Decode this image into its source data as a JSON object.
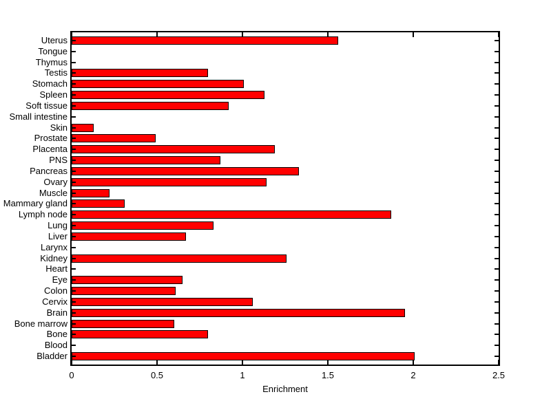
{
  "figure": {
    "background_color": "#ffffff",
    "title": ""
  },
  "chart_data": {
    "type": "bar",
    "orientation": "horizontal",
    "title": "",
    "xlabel": "Enrichment",
    "ylabel": "",
    "xlim": [
      0,
      2.5
    ],
    "xticks": [
      0,
      0.5,
      1,
      1.5,
      2,
      2.5
    ],
    "xtick_labels": [
      "0",
      "0.5",
      "1",
      "1.5",
      "2",
      "2.5"
    ],
    "grid": false,
    "legend": null,
    "bar_color": "#ff0000",
    "bar_edge_color": "#000000",
    "axis_color": "#000000",
    "categories": [
      "Uterus",
      "Tongue",
      "Thymus",
      "Testis",
      "Stomach",
      "Spleen",
      "Soft tissue",
      "Small intestine",
      "Skin",
      "Prostate",
      "Placenta",
      "PNS",
      "Pancreas",
      "Ovary",
      "Muscle",
      "Mammary gland",
      "Lymph node",
      "Lung",
      "Liver",
      "Larynx",
      "Kidney",
      "Heart",
      "Eye",
      "Colon",
      "Cervix",
      "Brain",
      "Bone marrow",
      "Bone",
      "Blood",
      "Bladder"
    ],
    "values": [
      1.56,
      0,
      0,
      0.8,
      1.01,
      1.13,
      0.92,
      0,
      0.13,
      0.49,
      1.19,
      0.87,
      1.33,
      1.14,
      0.22,
      0.31,
      1.87,
      0.83,
      0.67,
      0,
      1.26,
      0,
      0.65,
      0.61,
      1.06,
      1.95,
      0.6,
      0.8,
      0,
      2.01
    ]
  }
}
